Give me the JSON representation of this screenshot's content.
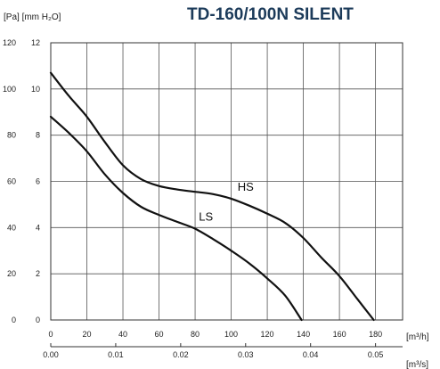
{
  "chart_data": {
    "type": "line",
    "title": "TD-160/100N SILENT",
    "ylabel_left": "[Pa] [mm H₂O]",
    "x_unit_top": "[m³/h]",
    "x_unit_bottom": "[m³/s]",
    "x_ticks_m3h": [
      "0",
      "20",
      "40",
      "60",
      "80",
      "100",
      "120",
      "140",
      "160",
      "180"
    ],
    "x_ticks_m3s": [
      "0.00",
      "0.01",
      "0.02",
      "0.03",
      "0.04",
      "0.05"
    ],
    "y_ticks_pa": [
      "0",
      "20",
      "40",
      "60",
      "80",
      "100",
      "120"
    ],
    "y_ticks_mmh2o": [
      "0",
      "2",
      "4",
      "6",
      "8",
      "10",
      "12"
    ],
    "xlim": [
      0,
      195
    ],
    "ylim": [
      0,
      120
    ],
    "grid": true,
    "series": [
      {
        "name": "HS",
        "x": [
          0,
          10,
          20,
          30,
          40,
          50,
          60,
          70,
          80,
          90,
          100,
          110,
          120,
          130,
          140,
          150,
          160,
          170,
          179
        ],
        "y": [
          107,
          97,
          88,
          77,
          67,
          61,
          58,
          56.5,
          55.5,
          54.5,
          52.5,
          49.5,
          46,
          42,
          35.5,
          27,
          19,
          9,
          0
        ]
      },
      {
        "name": "LS",
        "x": [
          0,
          10,
          20,
          30,
          40,
          50,
          60,
          70,
          80,
          90,
          100,
          110,
          120,
          130,
          139
        ],
        "y": [
          88,
          81,
          73,
          63,
          55,
          49,
          45.5,
          42.5,
          39.5,
          35,
          30,
          24.5,
          18,
          10.5,
          0
        ]
      }
    ]
  }
}
